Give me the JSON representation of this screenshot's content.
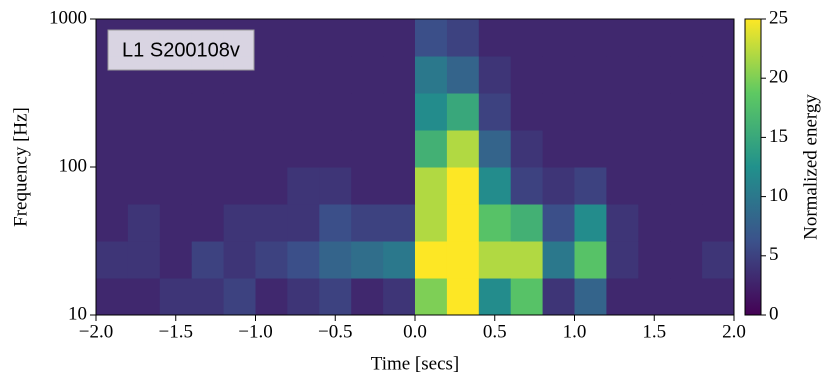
{
  "chart_data": {
    "type": "spectrogram",
    "annotation": "L1 S200108v",
    "xlabel": "Time [secs]",
    "ylabel": "Frequency [Hz]",
    "colorbar_label": "Normalized energy",
    "xlim": [
      -2,
      2
    ],
    "xticks": [
      {
        "value": -2,
        "label": "−2.0"
      },
      {
        "value": -1.5,
        "label": "−1.5"
      },
      {
        "value": -1,
        "label": "−1.0"
      },
      {
        "value": -0.5,
        "label": "−0.5"
      },
      {
        "value": 0,
        "label": "0.0"
      },
      {
        "value": 0.5,
        "label": "0.5"
      },
      {
        "value": 1,
        "label": "1.0"
      },
      {
        "value": 1.5,
        "label": "1.5"
      },
      {
        "value": 2,
        "label": "2.0"
      }
    ],
    "ylim": [
      10,
      1000
    ],
    "yticks": [
      10,
      100,
      1000
    ],
    "log_y": true,
    "clim": [
      0,
      25
    ],
    "cticks": [
      0,
      5,
      10,
      15,
      20,
      25
    ],
    "colormap": "viridis",
    "xbins": [
      -2,
      -1.8,
      -1.6,
      -1.4,
      -1.2,
      -1,
      -0.8,
      -0.6,
      -0.4,
      -0.2,
      0,
      0.2,
      0.4,
      0.6,
      0.8,
      1,
      1.2,
      1.4,
      1.6,
      1.8,
      2
    ],
    "ybins": [
      10,
      17.78,
      31.62,
      56.23,
      100,
      177.8,
      316.2,
      562.3,
      1000
    ],
    "values": [
      [
        3,
        3,
        4,
        4,
        5,
        3,
        4,
        5,
        3,
        4,
        20,
        25,
        12,
        18,
        4,
        8,
        3,
        3,
        3,
        3
      ],
      [
        4,
        4,
        3,
        5,
        4,
        5,
        6,
        8,
        9,
        10,
        25,
        25,
        22,
        22,
        10,
        18,
        4,
        3,
        3,
        4
      ],
      [
        3,
        4,
        3,
        3,
        4,
        4,
        4,
        6,
        5,
        5,
        22,
        25,
        18,
        16,
        6,
        12,
        4,
        3,
        3,
        3
      ],
      [
        3,
        3,
        3,
        3,
        3,
        3,
        4,
        4,
        3,
        3,
        22,
        25,
        12,
        5,
        4,
        5,
        3,
        3,
        3,
        3
      ],
      [
        3,
        3,
        3,
        3,
        3,
        3,
        3,
        3,
        3,
        3,
        16,
        22,
        8,
        4,
        3,
        3,
        3,
        3,
        3,
        3
      ],
      [
        3,
        3,
        3,
        3,
        3,
        3,
        3,
        3,
        3,
        3,
        12,
        15,
        5,
        3,
        3,
        3,
        3,
        3,
        3,
        3
      ],
      [
        3,
        3,
        3,
        3,
        3,
        3,
        3,
        3,
        3,
        3,
        10,
        8,
        4,
        3,
        3,
        3,
        3,
        3,
        3,
        3
      ],
      [
        3,
        3,
        3,
        3,
        3,
        3,
        3,
        3,
        3,
        3,
        6,
        5,
        3,
        3,
        3,
        3,
        3,
        3,
        3,
        3
      ]
    ]
  }
}
